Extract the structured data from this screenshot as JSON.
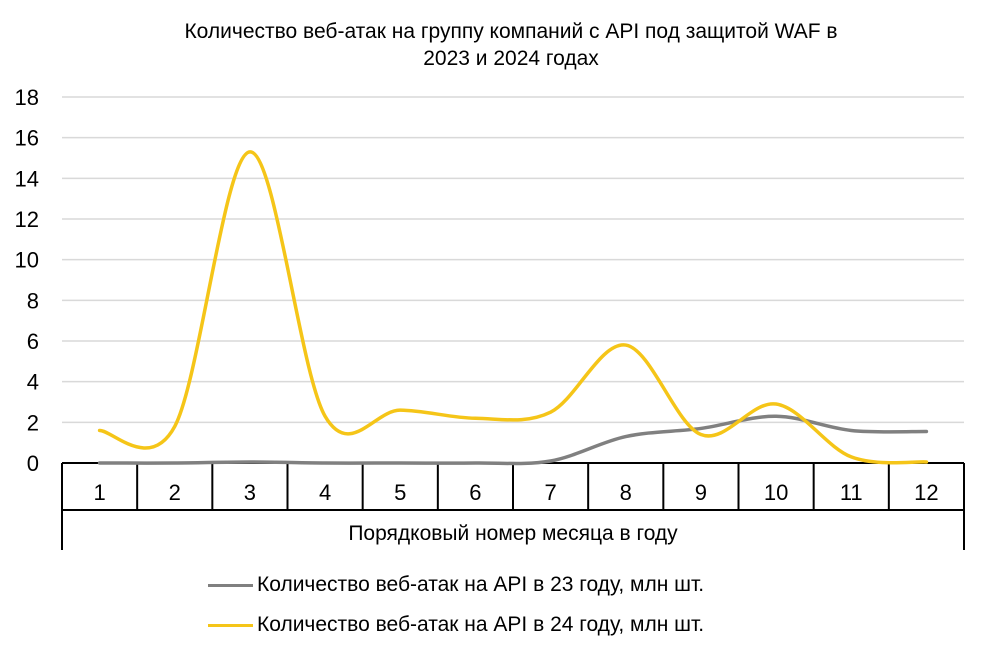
{
  "chart_data": {
    "type": "line",
    "title": "Количество веб-атак на группу компаний с API под защитой WAF в 2023 и 2024 годах",
    "title_lines": [
      "Количество веб-атак на группу компаний с API под защитой WAF в",
      "2023 и 2024 годах"
    ],
    "xlabel": "Порядковый номер месяца в году",
    "ylabel": "",
    "categories": [
      "1",
      "2",
      "3",
      "4",
      "5",
      "6",
      "7",
      "8",
      "9",
      "10",
      "11",
      "12"
    ],
    "ylim": [
      0,
      18
    ],
    "yticks": [
      "0",
      "2",
      "4",
      "6",
      "8",
      "10",
      "12",
      "14",
      "16",
      "18"
    ],
    "grid": true,
    "smooth": true,
    "legend_position": "bottom",
    "series": [
      {
        "name": "Количество веб-атак на API в 23 году, млн шт.",
        "color": "#808080",
        "values": [
          0.0,
          0.0,
          0.05,
          0.0,
          0.0,
          0.0,
          0.1,
          1.3,
          1.7,
          2.3,
          1.6,
          1.55
        ]
      },
      {
        "name": "Количество веб-атак на API в 24 году, млн шт.",
        "color": "#F5C518",
        "values": [
          1.6,
          1.8,
          15.3,
          2.3,
          2.6,
          2.2,
          2.5,
          5.8,
          1.4,
          2.9,
          0.3,
          0.05
        ]
      }
    ]
  }
}
